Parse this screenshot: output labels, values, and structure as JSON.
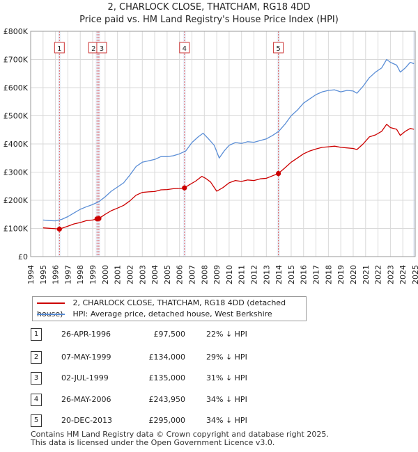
{
  "title": {
    "line1": "2, CHARLOCK CLOSE, THATCHAM, RG18 4DD",
    "line2": "Price paid vs. HM Land Registry's House Price Index (HPI)"
  },
  "legend": {
    "property": "2, CHARLOCK CLOSE, THATCHAM, RG18 4DD (detached house)",
    "hpi": "HPI: Average price, detached house, West Berkshire"
  },
  "colors": {
    "property": "#cc0000",
    "hpi": "#5b8ed6",
    "shade": "#dde6f5",
    "vline": "#e06060"
  },
  "sales": [
    {
      "num": "1",
      "date": "26-APR-1996",
      "price": "£97,500",
      "hpi": "22% ↓ HPI"
    },
    {
      "num": "2",
      "date": "07-MAY-1999",
      "price": "£134,000",
      "hpi": "29% ↓ HPI"
    },
    {
      "num": "3",
      "date": "02-JUL-1999",
      "price": "£135,000",
      "hpi": "31% ↓ HPI"
    },
    {
      "num": "4",
      "date": "26-MAY-2006",
      "price": "£243,950",
      "hpi": "34% ↓ HPI"
    },
    {
      "num": "5",
      "date": "20-DEC-2013",
      "price": "£295,000",
      "hpi": "34% ↓ HPI"
    }
  ],
  "footer": {
    "line1": "Contains HM Land Registry data © Crown copyright and database right 2025.",
    "line2": "This data is licensed under the Open Government Licence v3.0."
  },
  "chart_data": {
    "type": "line",
    "title": "Price paid vs. HM Land Registry's House Price Index (HPI)",
    "xlabel": "",
    "ylabel": "",
    "xlim": [
      1994,
      2025
    ],
    "ylim": [
      0,
      800000
    ],
    "yticks": [
      {
        "value": 0,
        "label": "£0"
      },
      {
        "value": 100000,
        "label": "£100K"
      },
      {
        "value": 200000,
        "label": "£200K"
      },
      {
        "value": 300000,
        "label": "£300K"
      },
      {
        "value": 400000,
        "label": "£400K"
      },
      {
        "value": 500000,
        "label": "£500K"
      },
      {
        "value": 600000,
        "label": "£600K"
      },
      {
        "value": 700000,
        "label": "£700K"
      },
      {
        "value": 800000,
        "label": "£800K"
      }
    ],
    "xticks": [
      "1994",
      "1995",
      "1996",
      "1997",
      "1998",
      "1999",
      "2000",
      "2001",
      "2002",
      "2003",
      "2004",
      "2005",
      "2006",
      "2007",
      "2008",
      "2009",
      "2010",
      "2011",
      "2012",
      "2013",
      "2014",
      "2015",
      "2016",
      "2017",
      "2018",
      "2019",
      "2020",
      "2021",
      "2022",
      "2023",
      "2024",
      "2025"
    ],
    "data_start": 1995.0,
    "data_end": 2024.9,
    "series": [
      {
        "name": "2, CHARLOCK CLOSE, THATCHAM, RG18 4DD (detached house)",
        "key": "property",
        "points": [
          [
            1995.0,
            102000
          ],
          [
            1996.0,
            99000
          ],
          [
            1996.32,
            97500
          ],
          [
            1997.0,
            108000
          ],
          [
            1997.5,
            116000
          ],
          [
            1998.0,
            121000
          ],
          [
            1998.5,
            128000
          ],
          [
            1999.0,
            130000
          ],
          [
            1999.35,
            134000
          ],
          [
            1999.5,
            135000
          ],
          [
            2000.0,
            150000
          ],
          [
            2000.5,
            163000
          ],
          [
            2001.0,
            172000
          ],
          [
            2001.5,
            182000
          ],
          [
            2002.0,
            198000
          ],
          [
            2002.5,
            218000
          ],
          [
            2003.0,
            228000
          ],
          [
            2003.5,
            230000
          ],
          [
            2004.0,
            231000
          ],
          [
            2004.5,
            237000
          ],
          [
            2005.0,
            238000
          ],
          [
            2005.5,
            241000
          ],
          [
            2006.0,
            242000
          ],
          [
            2006.4,
            243950
          ],
          [
            2006.8,
            255000
          ],
          [
            2007.3,
            268000
          ],
          [
            2007.8,
            285000
          ],
          [
            2008.1,
            278000
          ],
          [
            2008.5,
            265000
          ],
          [
            2009.0,
            232000
          ],
          [
            2009.5,
            245000
          ],
          [
            2010.0,
            262000
          ],
          [
            2010.5,
            270000
          ],
          [
            2011.0,
            267000
          ],
          [
            2011.5,
            272000
          ],
          [
            2012.0,
            270000
          ],
          [
            2012.5,
            276000
          ],
          [
            2013.0,
            278000
          ],
          [
            2013.5,
            287000
          ],
          [
            2013.97,
            295000
          ],
          [
            2014.5,
            315000
          ],
          [
            2015.0,
            335000
          ],
          [
            2015.5,
            350000
          ],
          [
            2016.0,
            365000
          ],
          [
            2016.5,
            375000
          ],
          [
            2017.0,
            382000
          ],
          [
            2017.5,
            388000
          ],
          [
            2018.0,
            390000
          ],
          [
            2018.5,
            392000
          ],
          [
            2019.0,
            388000
          ],
          [
            2019.5,
            386000
          ],
          [
            2020.0,
            384000
          ],
          [
            2020.3,
            380000
          ],
          [
            2020.8,
            400000
          ],
          [
            2021.3,
            425000
          ],
          [
            2021.8,
            432000
          ],
          [
            2022.3,
            445000
          ],
          [
            2022.7,
            470000
          ],
          [
            2023.0,
            458000
          ],
          [
            2023.5,
            452000
          ],
          [
            2023.8,
            430000
          ],
          [
            2024.2,
            445000
          ],
          [
            2024.6,
            455000
          ],
          [
            2024.9,
            452000
          ]
        ]
      },
      {
        "name": "HPI: Average price, detached house, West Berkshire",
        "key": "hpi",
        "points": [
          [
            1995.0,
            130000
          ],
          [
            1995.5,
            128000
          ],
          [
            1996.0,
            127000
          ],
          [
            1996.5,
            132000
          ],
          [
            1997.0,
            142000
          ],
          [
            1997.5,
            155000
          ],
          [
            1998.0,
            168000
          ],
          [
            1998.5,
            177000
          ],
          [
            1999.0,
            185000
          ],
          [
            1999.5,
            195000
          ],
          [
            2000.0,
            212000
          ],
          [
            2000.5,
            232000
          ],
          [
            2001.0,
            247000
          ],
          [
            2001.5,
            262000
          ],
          [
            2002.0,
            290000
          ],
          [
            2002.5,
            320000
          ],
          [
            2003.0,
            335000
          ],
          [
            2003.5,
            340000
          ],
          [
            2004.0,
            345000
          ],
          [
            2004.5,
            355000
          ],
          [
            2005.0,
            355000
          ],
          [
            2005.5,
            358000
          ],
          [
            2006.0,
            365000
          ],
          [
            2006.5,
            375000
          ],
          [
            2007.0,
            405000
          ],
          [
            2007.5,
            425000
          ],
          [
            2007.9,
            438000
          ],
          [
            2008.3,
            420000
          ],
          [
            2008.8,
            395000
          ],
          [
            2009.2,
            350000
          ],
          [
            2009.6,
            375000
          ],
          [
            2010.0,
            395000
          ],
          [
            2010.5,
            405000
          ],
          [
            2011.0,
            402000
          ],
          [
            2011.5,
            408000
          ],
          [
            2012.0,
            406000
          ],
          [
            2012.5,
            412000
          ],
          [
            2013.0,
            418000
          ],
          [
            2013.5,
            430000
          ],
          [
            2014.0,
            445000
          ],
          [
            2014.5,
            470000
          ],
          [
            2015.0,
            500000
          ],
          [
            2015.5,
            520000
          ],
          [
            2016.0,
            545000
          ],
          [
            2016.5,
            560000
          ],
          [
            2017.0,
            575000
          ],
          [
            2017.5,
            585000
          ],
          [
            2018.0,
            590000
          ],
          [
            2018.5,
            592000
          ],
          [
            2019.0,
            585000
          ],
          [
            2019.5,
            590000
          ],
          [
            2020.0,
            588000
          ],
          [
            2020.3,
            580000
          ],
          [
            2020.8,
            605000
          ],
          [
            2021.3,
            635000
          ],
          [
            2021.8,
            655000
          ],
          [
            2022.3,
            670000
          ],
          [
            2022.7,
            700000
          ],
          [
            2023.0,
            690000
          ],
          [
            2023.5,
            680000
          ],
          [
            2023.8,
            655000
          ],
          [
            2024.2,
            670000
          ],
          [
            2024.6,
            690000
          ],
          [
            2024.9,
            685000
          ]
        ]
      }
    ],
    "sale_markers": [
      {
        "num": "1",
        "x": 1996.32,
        "y": 97500
      },
      {
        "num": "2",
        "x": 1999.35,
        "y": 134000
      },
      {
        "num": "3",
        "x": 1999.5,
        "y": 135000
      },
      {
        "num": "4",
        "x": 2006.4,
        "y": 243950
      },
      {
        "num": "5",
        "x": 2013.97,
        "y": 295000
      }
    ],
    "grid": true
  }
}
